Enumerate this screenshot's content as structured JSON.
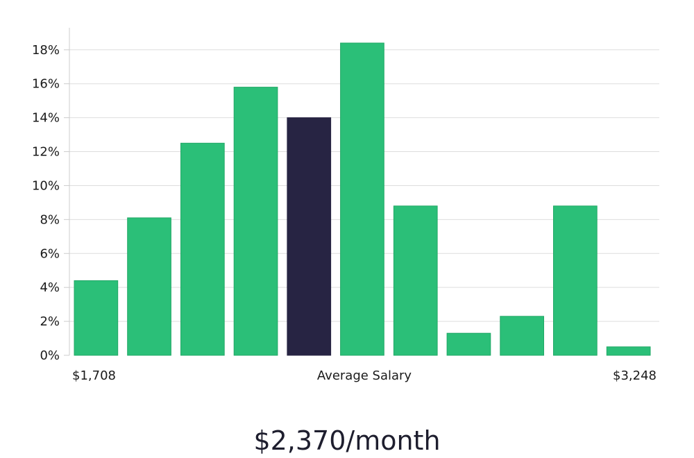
{
  "chart_data": {
    "type": "bar",
    "values": [
      4.4,
      8.1,
      12.5,
      15.8,
      14.0,
      18.4,
      8.8,
      1.3,
      2.3,
      8.8,
      0.5
    ],
    "highlight_index": 4,
    "ylim": [
      0,
      19.3
    ],
    "yticks": [
      0,
      2,
      4,
      6,
      8,
      10,
      12,
      14,
      16,
      18
    ],
    "ytick_suffix": "%",
    "grid": true,
    "x_labels": {
      "left": "$1,708",
      "center": "Average Salary",
      "right": "$3,248"
    },
    "headline": "$2,370/month",
    "colors": {
      "bar": "#2bbf78",
      "bar_edge": "#22a866",
      "highlight": "#272443",
      "grid": "#dddddd",
      "axis": "#cccccc"
    }
  }
}
